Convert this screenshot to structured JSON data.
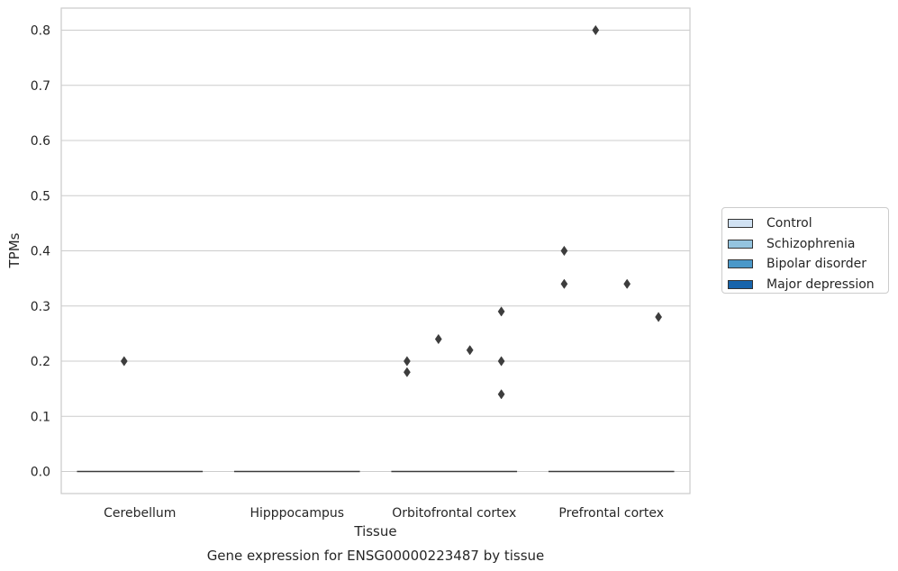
{
  "chart_data": {
    "type": "box",
    "title": "Gene expression for ENSG00000223487 by tissue",
    "xlabel": "Tissue",
    "ylabel": "TPMs",
    "categories": [
      "Cerebellum",
      "Hipppocampus",
      "Orbitofrontal cortex",
      "Prefrontal cortex"
    ],
    "ylim": [
      -0.04,
      0.84
    ],
    "yticks": [
      0.0,
      0.1,
      0.2,
      0.3,
      0.4,
      0.5,
      0.6,
      0.7,
      0.8
    ],
    "ytick_labels": [
      "0.0",
      "0.1",
      "0.2",
      "0.3",
      "0.4",
      "0.5",
      "0.6",
      "0.7",
      "0.8"
    ],
    "grid": true,
    "legend_position": "right",
    "series": [
      {
        "name": "Control",
        "color": "#d0e1f2"
      },
      {
        "name": "Schizophrenia",
        "color": "#94c4df"
      },
      {
        "name": "Bipolar disorder",
        "color": "#4a98c9"
      },
      {
        "name": "Major depression",
        "color": "#1764ab"
      }
    ],
    "boxes": [
      {
        "category": "Cerebellum",
        "median": 0.0
      },
      {
        "category": "Hipppocampus",
        "median": 0.0
      },
      {
        "category": "Orbitofrontal cortex",
        "median": 0.0
      },
      {
        "category": "Prefrontal cortex",
        "median": 0.0
      }
    ],
    "outliers": [
      {
        "category": "Cerebellum",
        "series": "Schizophrenia",
        "y": 0.2
      },
      {
        "category": "Orbitofrontal cortex",
        "series": "Control",
        "y": 0.2
      },
      {
        "category": "Orbitofrontal cortex",
        "series": "Control",
        "y": 0.18
      },
      {
        "category": "Orbitofrontal cortex",
        "series": "Schizophrenia",
        "y": 0.24
      },
      {
        "category": "Orbitofrontal cortex",
        "series": "Bipolar disorder",
        "y": 0.22
      },
      {
        "category": "Orbitofrontal cortex",
        "series": "Major depression",
        "y": 0.29
      },
      {
        "category": "Orbitofrontal cortex",
        "series": "Major depression",
        "y": 0.2
      },
      {
        "category": "Orbitofrontal cortex",
        "series": "Major depression",
        "y": 0.14
      },
      {
        "category": "Prefrontal cortex",
        "series": "Control",
        "y": 0.4
      },
      {
        "category": "Prefrontal cortex",
        "series": "Control",
        "y": 0.34
      },
      {
        "category": "Prefrontal cortex",
        "series": "Schizophrenia",
        "y": 0.8
      },
      {
        "category": "Prefrontal cortex",
        "series": "Bipolar disorder",
        "y": 0.34
      },
      {
        "category": "Prefrontal cortex",
        "series": "Major depression",
        "y": 0.28
      }
    ]
  }
}
